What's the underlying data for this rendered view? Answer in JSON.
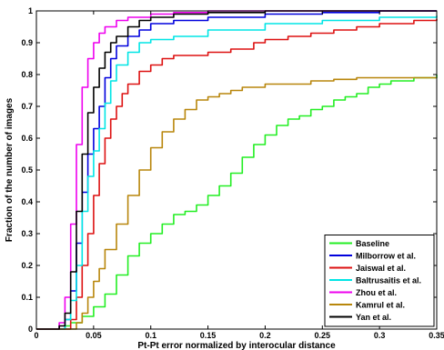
{
  "chart_data": {
    "type": "line",
    "title": "",
    "xlabel": "Pt-Pt error normalized by interocular distance",
    "ylabel": "Fraction of the number of images",
    "xlim": [
      0,
      0.35
    ],
    "ylim": [
      0,
      1
    ],
    "x_ticks": [
      0,
      0.05,
      0.1,
      0.15,
      0.2,
      0.25,
      0.3,
      0.35
    ],
    "x_tick_labels": [
      "0",
      "0.05",
      "0.1",
      "0.15",
      "0.2",
      "0.25",
      "0.3",
      "0.35"
    ],
    "y_ticks": [
      0,
      0.1,
      0.2,
      0.3,
      0.4,
      0.5,
      0.6,
      0.7,
      0.8,
      0.9,
      1
    ],
    "y_tick_labels": [
      "0",
      "0.1",
      "0.2",
      "0.3",
      "0.4",
      "0.5",
      "0.6",
      "0.7",
      "0.8",
      "0.9",
      "1"
    ],
    "grid": false,
    "legend_position": "bottom-right",
    "series": [
      {
        "name": "Baseline",
        "color": "#22ee22",
        "points": [
          [
            0,
            0
          ],
          [
            0.02,
            0.0
          ],
          [
            0.025,
            0.01
          ],
          [
            0.03,
            0.02
          ],
          [
            0.04,
            0.04
          ],
          [
            0.05,
            0.07
          ],
          [
            0.06,
            0.11
          ],
          [
            0.07,
            0.17
          ],
          [
            0.08,
            0.23
          ],
          [
            0.09,
            0.27
          ],
          [
            0.1,
            0.3
          ],
          [
            0.11,
            0.33
          ],
          [
            0.12,
            0.36
          ],
          [
            0.13,
            0.37
          ],
          [
            0.14,
            0.39
          ],
          [
            0.15,
            0.42
          ],
          [
            0.16,
            0.45
          ],
          [
            0.17,
            0.49
          ],
          [
            0.18,
            0.54
          ],
          [
            0.19,
            0.58
          ],
          [
            0.2,
            0.61
          ],
          [
            0.21,
            0.64
          ],
          [
            0.22,
            0.66
          ],
          [
            0.23,
            0.67
          ],
          [
            0.24,
            0.69
          ],
          [
            0.25,
            0.7
          ],
          [
            0.26,
            0.72
          ],
          [
            0.27,
            0.73
          ],
          [
            0.28,
            0.74
          ],
          [
            0.29,
            0.76
          ],
          [
            0.3,
            0.77
          ],
          [
            0.31,
            0.78
          ],
          [
            0.32,
            0.78
          ],
          [
            0.33,
            0.79
          ],
          [
            0.34,
            0.79
          ],
          [
            0.35,
            0.8
          ]
        ]
      },
      {
        "name": "Milborrow et al.",
        "color": "#0000dd",
        "points": [
          [
            0,
            0
          ],
          [
            0.02,
            0.0
          ],
          [
            0.025,
            0.03
          ],
          [
            0.03,
            0.12
          ],
          [
            0.035,
            0.27
          ],
          [
            0.04,
            0.43
          ],
          [
            0.045,
            0.55
          ],
          [
            0.05,
            0.63
          ],
          [
            0.055,
            0.7
          ],
          [
            0.06,
            0.79
          ],
          [
            0.065,
            0.85
          ],
          [
            0.07,
            0.89
          ],
          [
            0.08,
            0.92
          ],
          [
            0.09,
            0.94
          ],
          [
            0.1,
            0.96
          ],
          [
            0.12,
            0.97
          ],
          [
            0.15,
            0.98
          ],
          [
            0.2,
            0.99
          ],
          [
            0.25,
            0.995
          ],
          [
            0.3,
            1.0
          ],
          [
            0.35,
            1.0
          ]
        ]
      },
      {
        "name": "Jaiswal et al.",
        "color": "#dd1111",
        "points": [
          [
            0,
            0
          ],
          [
            0.02,
            0.0
          ],
          [
            0.03,
            0.03
          ],
          [
            0.035,
            0.1
          ],
          [
            0.04,
            0.2
          ],
          [
            0.045,
            0.3
          ],
          [
            0.05,
            0.42
          ],
          [
            0.055,
            0.52
          ],
          [
            0.06,
            0.6
          ],
          [
            0.065,
            0.66
          ],
          [
            0.07,
            0.7
          ],
          [
            0.075,
            0.74
          ],
          [
            0.08,
            0.77
          ],
          [
            0.09,
            0.81
          ],
          [
            0.1,
            0.83
          ],
          [
            0.11,
            0.85
          ],
          [
            0.12,
            0.86
          ],
          [
            0.13,
            0.86
          ],
          [
            0.15,
            0.87
          ],
          [
            0.17,
            0.88
          ],
          [
            0.19,
            0.9
          ],
          [
            0.2,
            0.91
          ],
          [
            0.22,
            0.92
          ],
          [
            0.24,
            0.93
          ],
          [
            0.26,
            0.94
          ],
          [
            0.28,
            0.95
          ],
          [
            0.3,
            0.96
          ],
          [
            0.33,
            0.97
          ],
          [
            0.35,
            0.975
          ]
        ]
      },
      {
        "name": "Baltrusaitis et al.",
        "color": "#00e5e5",
        "points": [
          [
            0,
            0
          ],
          [
            0.02,
            0.0
          ],
          [
            0.025,
            0.03
          ],
          [
            0.03,
            0.09
          ],
          [
            0.035,
            0.2
          ],
          [
            0.04,
            0.37
          ],
          [
            0.045,
            0.48
          ],
          [
            0.05,
            0.56
          ],
          [
            0.055,
            0.63
          ],
          [
            0.06,
            0.71
          ],
          [
            0.065,
            0.78
          ],
          [
            0.07,
            0.83
          ],
          [
            0.08,
            0.87
          ],
          [
            0.09,
            0.9
          ],
          [
            0.1,
            0.91
          ],
          [
            0.12,
            0.92
          ],
          [
            0.15,
            0.94
          ],
          [
            0.2,
            0.96
          ],
          [
            0.25,
            0.97
          ],
          [
            0.3,
            0.98
          ],
          [
            0.35,
            0.985
          ]
        ]
      },
      {
        "name": "Zhou et al.",
        "color": "#ee00ee",
        "points": [
          [
            0,
            0
          ],
          [
            0.02,
            0.02
          ],
          [
            0.025,
            0.1
          ],
          [
            0.03,
            0.33
          ],
          [
            0.035,
            0.58
          ],
          [
            0.04,
            0.76
          ],
          [
            0.045,
            0.85
          ],
          [
            0.05,
            0.9
          ],
          [
            0.055,
            0.93
          ],
          [
            0.06,
            0.95
          ],
          [
            0.07,
            0.97
          ],
          [
            0.08,
            0.98
          ],
          [
            0.1,
            0.99
          ],
          [
            0.12,
            0.995
          ],
          [
            0.15,
            1.0
          ],
          [
            0.35,
            1.0
          ]
        ]
      },
      {
        "name": "Kamrul et al.",
        "color": "#b8860b",
        "points": [
          [
            0,
            0
          ],
          [
            0.03,
            0.0
          ],
          [
            0.035,
            0.02
          ],
          [
            0.04,
            0.05
          ],
          [
            0.045,
            0.1
          ],
          [
            0.05,
            0.15
          ],
          [
            0.055,
            0.19
          ],
          [
            0.06,
            0.25
          ],
          [
            0.07,
            0.33
          ],
          [
            0.08,
            0.42
          ],
          [
            0.09,
            0.5
          ],
          [
            0.1,
            0.57
          ],
          [
            0.11,
            0.62
          ],
          [
            0.12,
            0.66
          ],
          [
            0.13,
            0.69
          ],
          [
            0.14,
            0.72
          ],
          [
            0.15,
            0.73
          ],
          [
            0.16,
            0.74
          ],
          [
            0.17,
            0.75
          ],
          [
            0.18,
            0.76
          ],
          [
            0.2,
            0.77
          ],
          [
            0.22,
            0.77
          ],
          [
            0.24,
            0.78
          ],
          [
            0.26,
            0.785
          ],
          [
            0.28,
            0.79
          ],
          [
            0.3,
            0.79
          ],
          [
            0.35,
            0.79
          ]
        ]
      },
      {
        "name": "Yan et al.",
        "color": "#000000",
        "points": [
          [
            0,
            0
          ],
          [
            0.02,
            0.01
          ],
          [
            0.025,
            0.05
          ],
          [
            0.03,
            0.18
          ],
          [
            0.035,
            0.37
          ],
          [
            0.04,
            0.55
          ],
          [
            0.045,
            0.68
          ],
          [
            0.05,
            0.76
          ],
          [
            0.055,
            0.82
          ],
          [
            0.06,
            0.87
          ],
          [
            0.065,
            0.9
          ],
          [
            0.07,
            0.92
          ],
          [
            0.08,
            0.95
          ],
          [
            0.09,
            0.97
          ],
          [
            0.1,
            0.98
          ],
          [
            0.12,
            0.99
          ],
          [
            0.15,
            0.995
          ],
          [
            0.2,
            1.0
          ],
          [
            0.35,
            1.0
          ]
        ]
      }
    ]
  }
}
